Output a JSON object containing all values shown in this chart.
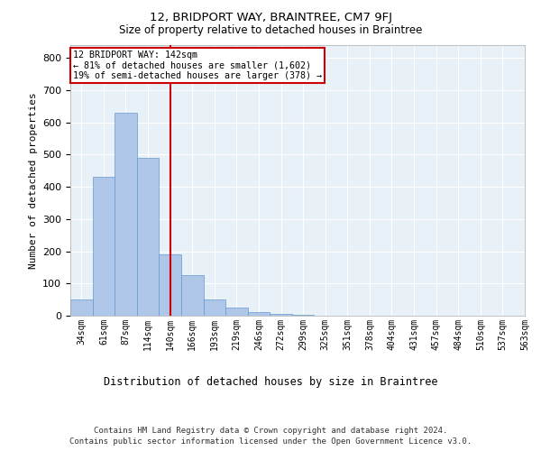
{
  "title1": "12, BRIDPORT WAY, BRAINTREE, CM7 9FJ",
  "title2": "Size of property relative to detached houses in Braintree",
  "xlabel": "Distribution of detached houses by size in Braintree",
  "ylabel": "Number of detached properties",
  "footnote1": "Contains HM Land Registry data © Crown copyright and database right 2024.",
  "footnote2": "Contains public sector information licensed under the Open Government Licence v3.0.",
  "annotation_line1": "12 BRIDPORT WAY: 142sqm",
  "annotation_line2": "← 81% of detached houses are smaller (1,602)",
  "annotation_line3": "19% of semi-detached houses are larger (378) →",
  "property_line_x": 4,
  "bar_values": [
    50,
    430,
    630,
    490,
    190,
    125,
    50,
    25,
    10,
    5,
    2,
    1,
    0,
    0,
    0,
    0,
    0,
    0,
    0,
    0
  ],
  "tick_labels": [
    "34sqm",
    "61sqm",
    "87sqm",
    "114sqm",
    "140sqm",
    "166sqm",
    "193sqm",
    "219sqm",
    "246sqm",
    "272sqm",
    "299sqm",
    "325sqm",
    "351sqm",
    "378sqm",
    "404sqm",
    "431sqm",
    "457sqm",
    "484sqm",
    "510sqm",
    "537sqm",
    "563sqm"
  ],
  "bar_color": "#aec6e8",
  "bar_edge_color": "#6699cc",
  "vline_color": "#cc0000",
  "bg_color": "#e8f0f8",
  "grid_color": "#ffffff",
  "ylim": [
    0,
    840
  ],
  "yticks": [
    0,
    100,
    200,
    300,
    400,
    500,
    600,
    700,
    800
  ],
  "fig_width": 6.0,
  "fig_height": 5.0,
  "dpi": 100
}
